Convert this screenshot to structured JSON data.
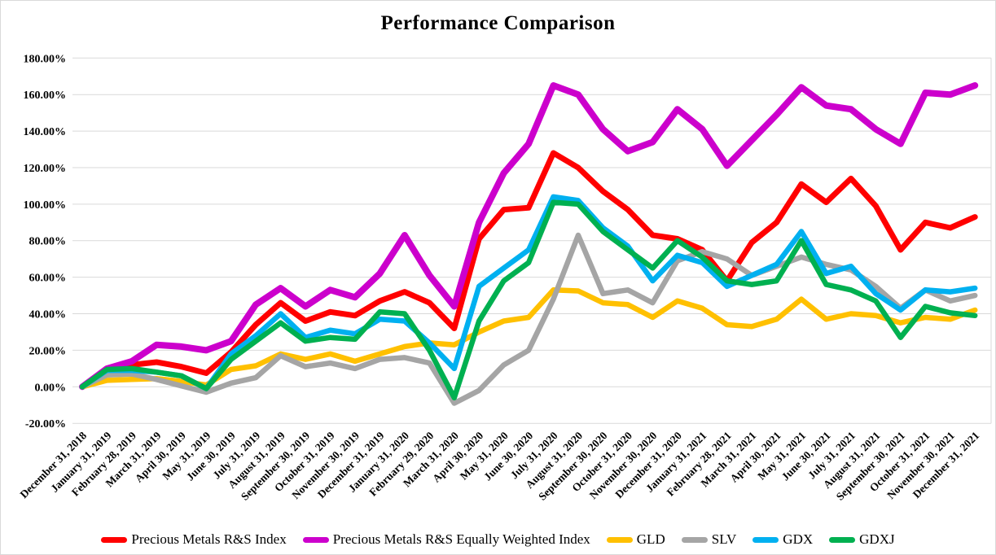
{
  "chart_data": {
    "type": "line",
    "title": "Performance Comparison",
    "xlabel": "",
    "ylabel": "",
    "ylim": [
      -20,
      180
    ],
    "ytick_step": 20,
    "ytick_format": "percent-2dp",
    "grid": "horizontal",
    "legend_position": "bottom",
    "categories": [
      "December 31, 2018",
      "January 31, 2019",
      "February 28, 2019",
      "March 31, 2019",
      "April 30, 2019",
      "May 31, 2019",
      "June 30, 2019",
      "July 31, 2019",
      "August 31, 2019",
      "September 30, 2019",
      "October 31, 2019",
      "November 30, 2019",
      "December 31, 2019",
      "January 31, 2020",
      "February 29, 2020",
      "March 31, 2020",
      "April 30, 2020",
      "May 31, 2020",
      "June 30, 2020",
      "July 31, 2020",
      "August 31, 2020",
      "September 30, 2020",
      "October 31, 2020",
      "November 30, 2020",
      "December 31, 2020",
      "January 31, 2021",
      "February 28, 2021",
      "March 31, 2021",
      "April 30, 2021",
      "May 31, 2021",
      "June 30, 2021",
      "July 31, 2021",
      "August 31, 2021",
      "September 30, 2021",
      "October 31, 2021",
      "November 30, 2021",
      "December 31, 2021"
    ],
    "series": [
      {
        "name": "Precious Metals R&S Index",
        "color": "#FF0000",
        "width": 7,
        "values": [
          0,
          9,
          12,
          13.5,
          11,
          7.5,
          19,
          34,
          46,
          36,
          41,
          39,
          47,
          52,
          46,
          32,
          81,
          97,
          98,
          128,
          120,
          107,
          97,
          83,
          81,
          75,
          58,
          79,
          90,
          111,
          101,
          114,
          99,
          75,
          90,
          87,
          93
        ]
      },
      {
        "name": "Precious Metals R&S Equally Weighted Index",
        "color": "#CC00CC",
        "width": 8,
        "values": [
          0,
          10,
          14,
          23,
          22,
          20,
          25,
          45,
          54,
          44,
          53,
          49,
          62,
          83,
          61,
          44,
          90,
          117,
          133,
          165,
          160,
          141,
          129,
          134,
          152,
          141,
          121,
          135,
          149,
          164,
          154,
          152,
          141,
          133,
          161,
          160,
          165
        ]
      },
      {
        "name": "GLD",
        "color": "#FFC000",
        "width": 6.5,
        "values": [
          0,
          3.5,
          4,
          4.5,
          3,
          1,
          9.5,
          11.5,
          18,
          15,
          18,
          14,
          18,
          22,
          24,
          23,
          30,
          36,
          38,
          53,
          52.5,
          46,
          45,
          38,
          47,
          43,
          34,
          33,
          37,
          48,
          37,
          40,
          39,
          35,
          38,
          37,
          42
        ]
      },
      {
        "name": "SLV",
        "color": "#A5A5A5",
        "width": 6.5,
        "values": [
          0,
          6.5,
          7,
          4,
          0.5,
          -3,
          2,
          5,
          17,
          11,
          13,
          10,
          15,
          16,
          13,
          -9,
          -2,
          12,
          20,
          48,
          83,
          51,
          53,
          46,
          69,
          74,
          70,
          61,
          66,
          71,
          67,
          64,
          55,
          43,
          53,
          47,
          50
        ]
      },
      {
        "name": "GDX",
        "color": "#00B0F0",
        "width": 6.5,
        "values": [
          0,
          9,
          9,
          8,
          6,
          -1,
          18,
          28,
          40,
          27,
          31,
          29,
          37,
          36,
          24,
          10,
          55,
          65,
          75,
          104,
          102,
          87,
          77,
          58,
          72,
          68,
          55,
          61,
          67,
          85,
          62,
          66,
          51,
          42,
          53,
          52,
          54
        ]
      },
      {
        "name": "GDXJ",
        "color": "#00B050",
        "width": 6.5,
        "values": [
          0,
          9.5,
          10,
          8,
          6,
          -1,
          15,
          25,
          35,
          25,
          27,
          26,
          41,
          40,
          20,
          -6,
          36,
          58,
          68,
          101,
          100,
          85,
          75,
          65,
          80,
          71,
          58,
          56,
          58,
          80,
          56,
          53,
          47,
          27,
          44,
          40.5,
          39
        ]
      }
    ]
  }
}
